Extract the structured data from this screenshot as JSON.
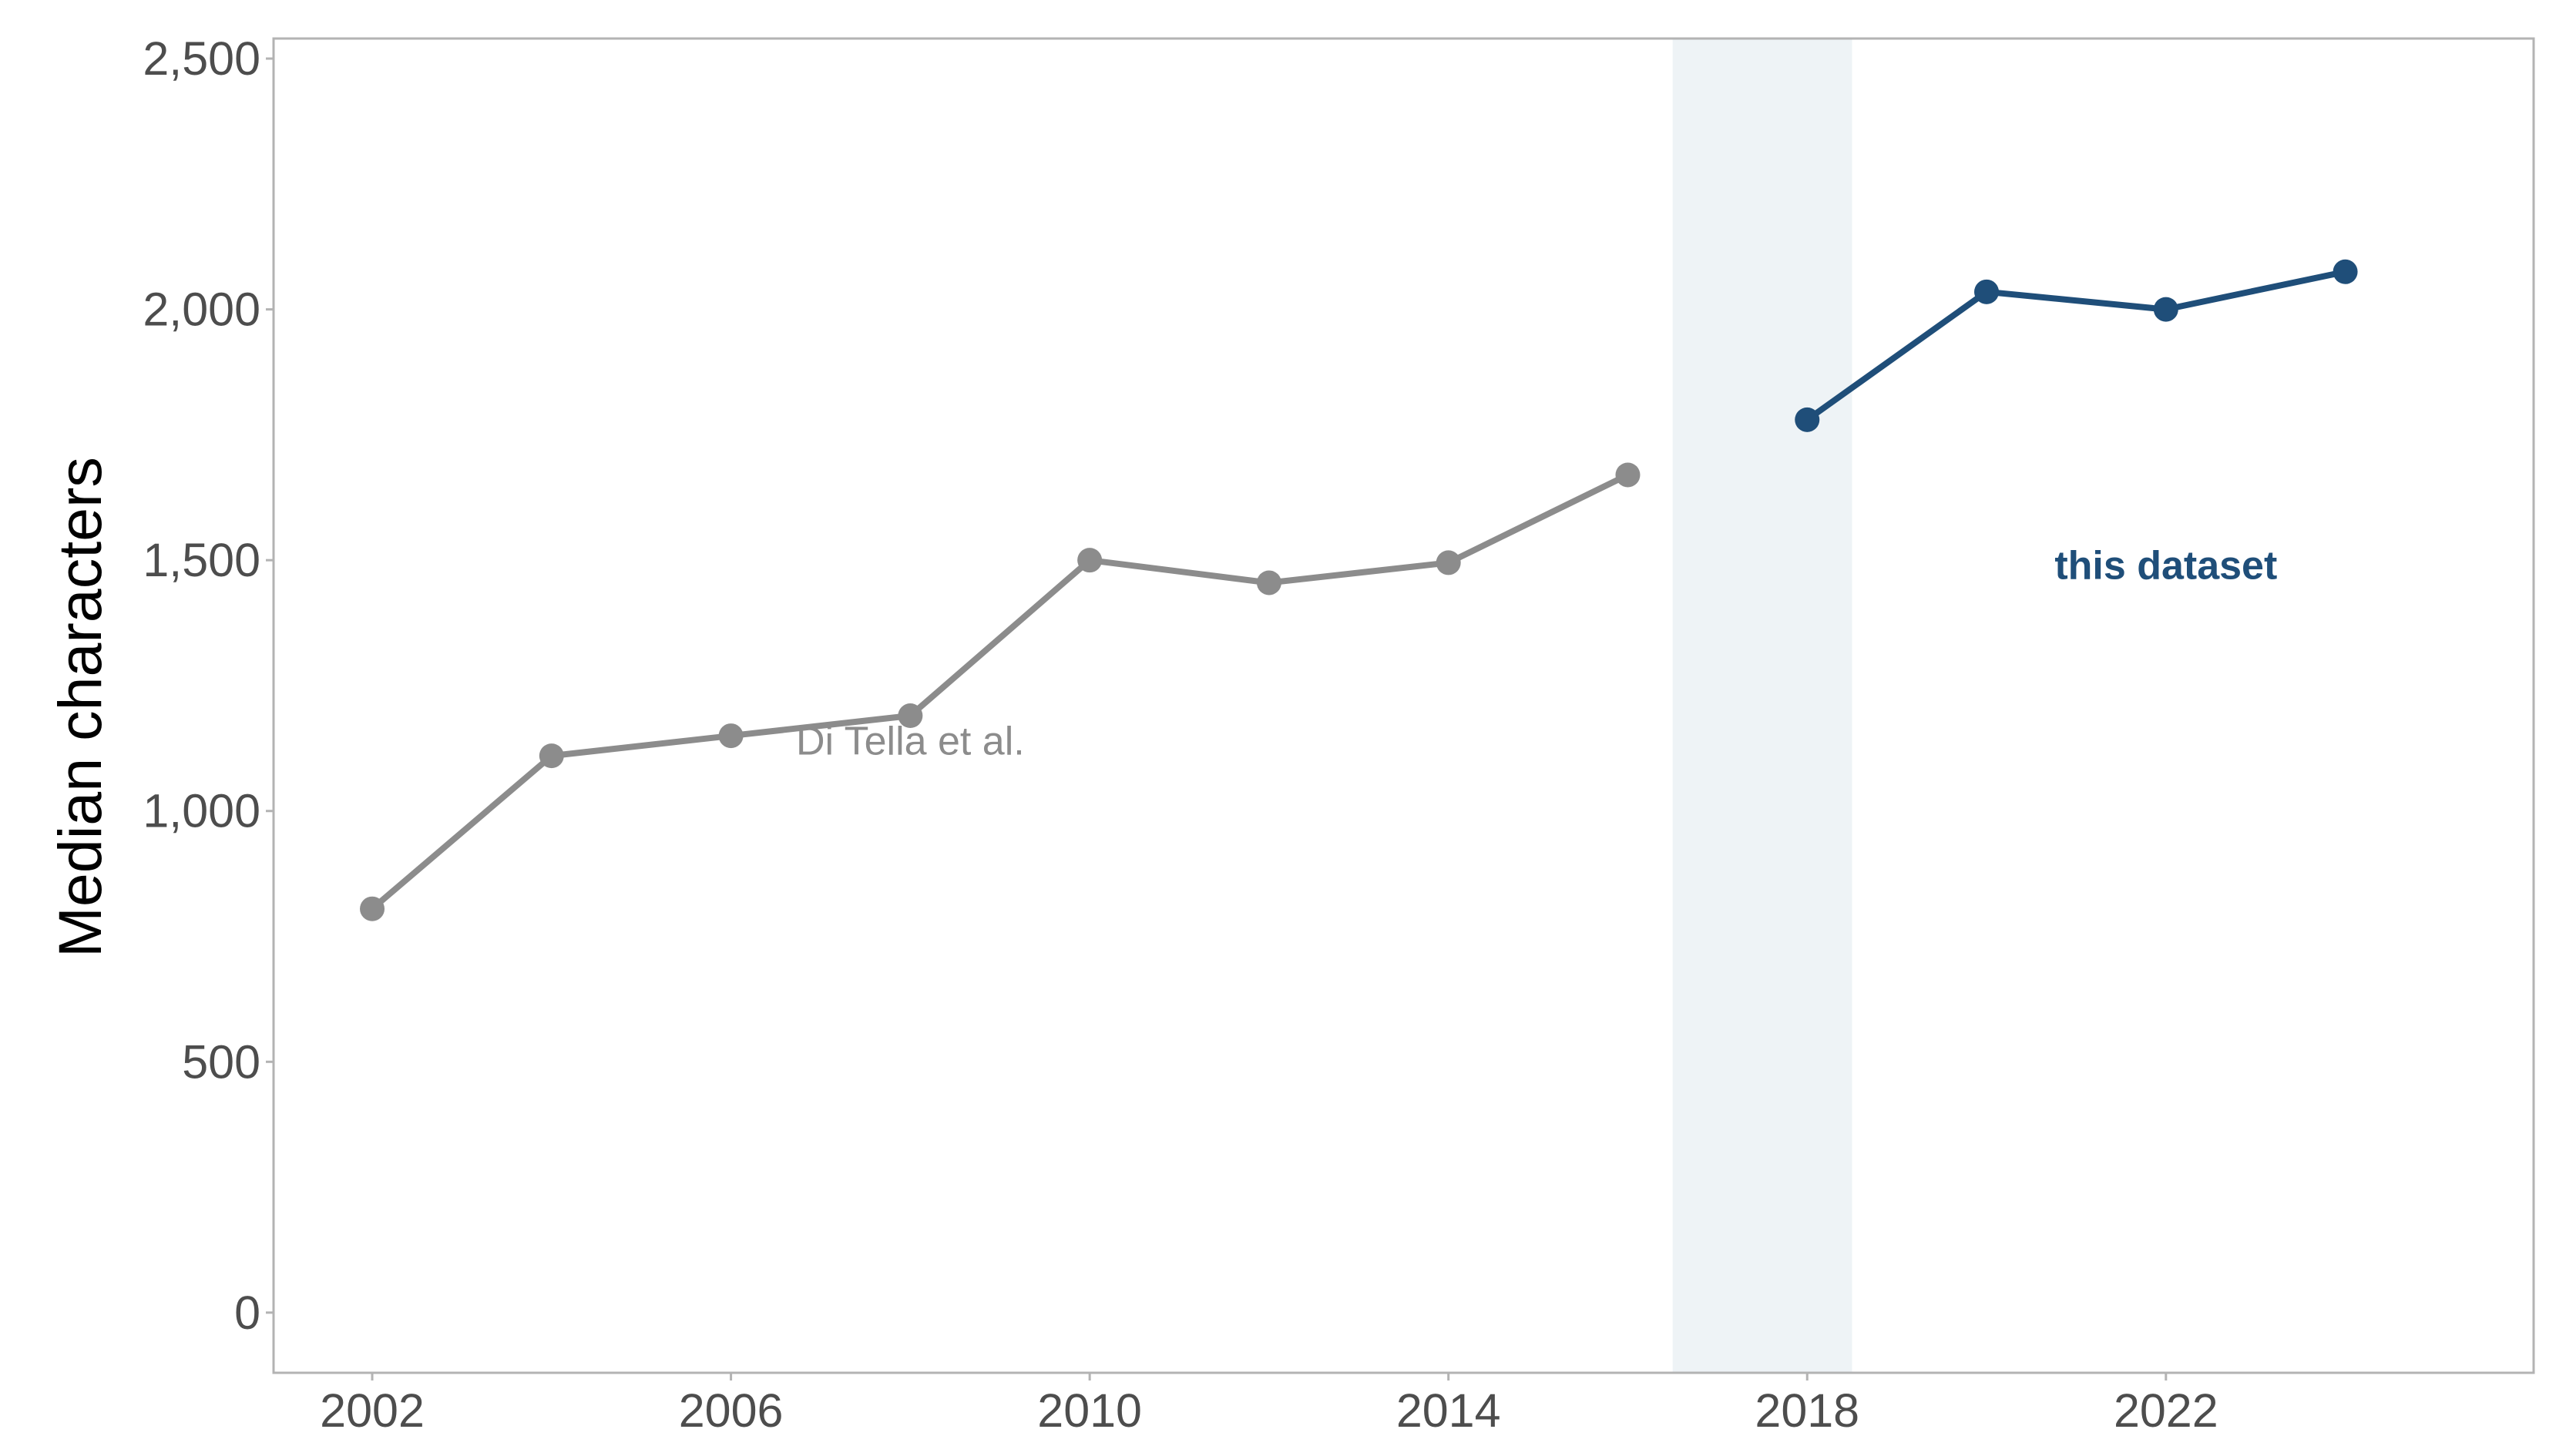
{
  "chart_data": {
    "type": "line",
    "title": "",
    "xlabel": "",
    "ylabel": "Median characters",
    "xlim": [
      2000.9,
      2026.1
    ],
    "ylim": [
      -120,
      2540
    ],
    "x_ticks": [
      2002,
      2006,
      2010,
      2014,
      2018,
      2022
    ],
    "y_ticks": [
      0,
      500,
      1000,
      1500,
      2000,
      2500
    ],
    "y_tick_labels": [
      "0",
      "500",
      "1,000",
      "1,500",
      "2,000",
      "2,500"
    ],
    "grid": false,
    "highlight_band": {
      "x_from": 2016.5,
      "x_to": 2018.5,
      "color": "#eef3f6"
    },
    "series": [
      {
        "color": "#8c8c8c",
        "x": [
          2002,
          2004,
          2006,
          2008,
          2010,
          2012,
          2014,
          2016
        ],
        "y": [
          805,
          1110,
          1150,
          1190,
          1500,
          1455,
          1495,
          1670
        ]
      },
      {
        "color": "#1f4e79",
        "x": [
          2018,
          2020,
          2022,
          2024
        ],
        "y": [
          1780,
          2035,
          2000,
          2075
        ]
      }
    ],
    "annotations": [
      {
        "text": "Di Tella et al.",
        "x": 2008,
        "y": 1140,
        "color": "#8c8c8c",
        "bold": false
      },
      {
        "text": "this dataset",
        "x": 2022,
        "y": 1490,
        "color": "#1f4e79",
        "bold": true
      }
    ]
  }
}
